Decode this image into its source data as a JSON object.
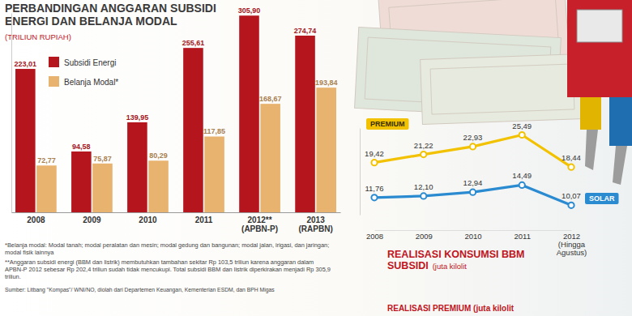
{
  "chart_data": [
    {
      "type": "bar",
      "title": "PERBANDINGAN ANGGARAN SUBSIDI ENERGI DAN BELANJA MODAL",
      "subtitle": "(TRILIUN RUPIAH)",
      "categories": [
        "2008",
        "2009",
        "2010",
        "2011",
        "2012** (APBN-P)",
        "2013 (RAPBN)"
      ],
      "series": [
        {
          "name": "Subsidi Energi",
          "color": "#b5161e",
          "values": [
            223.01,
            94.58,
            139.95,
            255.61,
            305.9,
            274.74
          ],
          "value_labels": [
            "223,01",
            "94,58",
            "139,95",
            "255,61",
            "305,90",
            "274,74"
          ]
        },
        {
          "name": "Belanja Modal*",
          "color": "#e8b26f",
          "values": [
            72.77,
            75.87,
            80.29,
            117.85,
            168.67,
            193.84
          ],
          "value_labels": [
            "72,77",
            "75,87",
            "80,29",
            "117,85",
            "168,67",
            "193,84"
          ]
        }
      ],
      "ylim": [
        0,
        310
      ],
      "yticks": [],
      "data_labels": true,
      "legend": "top-left",
      "tick_labels": "x",
      "annotations": [
        "*Belanja modal: Modal tanah; modal peralatan dan mesin; modal gedung dan bangunan; modal jalan, irigasi, dan jaringan; modal fisik lainnya",
        "**Anggaran subsidi energi (BBM dan listrik) membutuhkan tambahan sekitar Rp 103,5 triliun karena anggaran dalam APBN-P 2012 sebesar Rp 202,4 triliun sudah tidak mencukupi. Total subsidi BBM dan listrik diperkirakan menjadi Rp 305,9 triliun.",
        "Sumber: Litbang \"Kompas\"/ WNI/NO, diolah dari Departemen Keuangan, Kementerian ESDM, dan BPH Migas"
      ]
    },
    {
      "type": "line",
      "title": "REALISASI KONSUMSI BBM SUBSIDI",
      "subtitle": "(juta kilolit",
      "categories": [
        "2008",
        "2009",
        "2010",
        "2011",
        "2012 (Hingga Agustus)"
      ],
      "series": [
        {
          "name": "PREMIUM",
          "color": "#f2c200",
          "marker": "circle",
          "values": [
            19.42,
            21.22,
            22.93,
            25.49,
            18.44
          ],
          "value_labels": [
            "19,42",
            "21,22",
            "22,93",
            "25,49",
            "18,44"
          ]
        },
        {
          "name": "SOLAR",
          "color": "#2b8bd1",
          "marker": "circle",
          "values": [
            11.76,
            12.1,
            12.94,
            14.49,
            10.07
          ],
          "value_labels": [
            "11,76",
            "12,10",
            "12,94",
            "14,49",
            "10,07"
          ]
        }
      ],
      "ylim": [
        8,
        27
      ],
      "yticks": [],
      "data_labels": true,
      "tick_labels": "x",
      "annotations": [
        "REALISASI PREMIUM (juta kilolit"
      ]
    }
  ]
}
